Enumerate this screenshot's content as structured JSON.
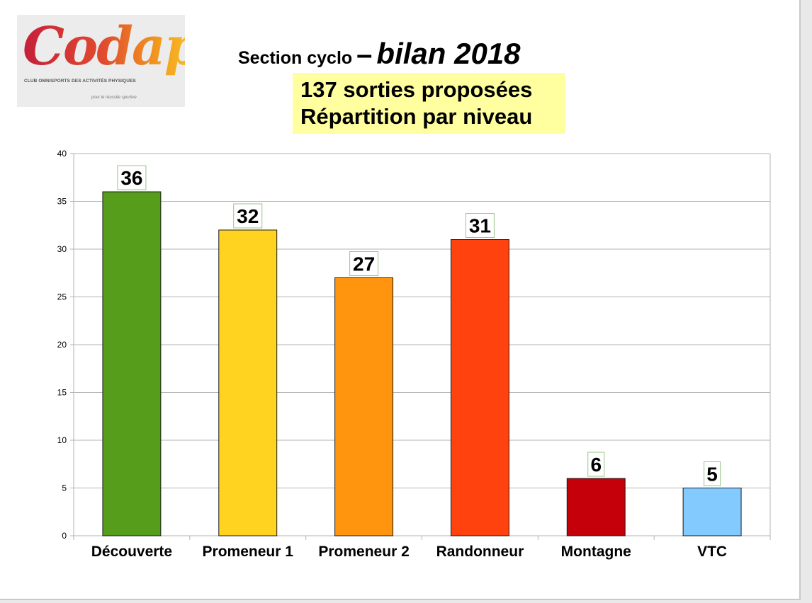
{
  "logo": {
    "wordmark": "Codap",
    "tagline": "CLUB OMNISPORTS DES ACTIVITÉS PHYSIQUES",
    "slogan": "pour le réussite sportive"
  },
  "title": {
    "prefix": "Section cyclo",
    "dash": "–",
    "main": "bilan 2018"
  },
  "subtitle": {
    "line1": "137 sorties proposées",
    "line2": "Répartition par niveau"
  },
  "chart_data": {
    "type": "bar",
    "title": "",
    "xlabel": "",
    "ylabel": "",
    "ylim": [
      0,
      40
    ],
    "yticks": [
      0,
      5,
      10,
      15,
      20,
      25,
      30,
      35,
      40
    ],
    "grid": true,
    "categories": [
      "Découverte",
      "Promeneur 1",
      "Promeneur 2",
      "Randonneur",
      "Montagne",
      "VTC"
    ],
    "values": [
      36,
      32,
      27,
      31,
      6,
      5
    ],
    "colors": [
      "#579d1c",
      "#ffd320",
      "#ff950e",
      "#ff420e",
      "#c5000b",
      "#83caff"
    ],
    "data_labels": [
      "36",
      "32",
      "27",
      "31",
      "6",
      "5"
    ]
  }
}
